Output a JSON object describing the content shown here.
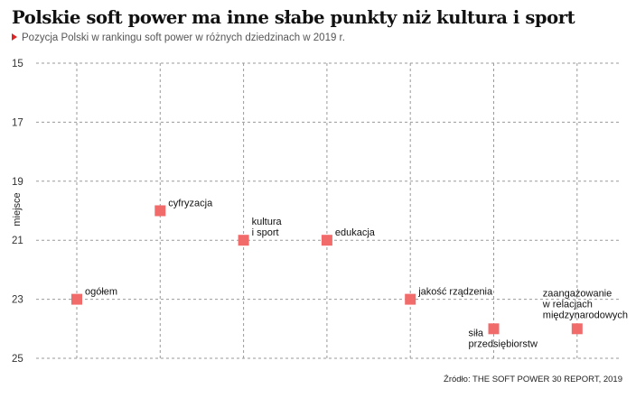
{
  "chart_data": {
    "type": "scatter",
    "title": "Polskie soft power ma inne słabe punkty niż kultura i sport",
    "subtitle": "Pozycja Polski w rankingu soft power w różnych dziedzinach w 2019 r.",
    "ylabel": "miejsce",
    "xlabel": "",
    "ylim": [
      15,
      25
    ],
    "y_inverted": true,
    "y_ticks": [
      "15",
      "17",
      "19",
      "21",
      "23",
      "25"
    ],
    "grid": true,
    "points": [
      {
        "label": [
          "ogółem"
        ],
        "x": 1,
        "y": 23
      },
      {
        "label": [
          "cyfryzacja"
        ],
        "x": 2,
        "y": 20
      },
      {
        "label": [
          "kultura",
          "i sport"
        ],
        "x": 3,
        "y": 21
      },
      {
        "label": [
          "edukacja"
        ],
        "x": 4,
        "y": 21
      },
      {
        "label": [
          "jakość rządzenia"
        ],
        "x": 5,
        "y": 23
      },
      {
        "label": [
          "siła",
          "przedsiębiorstw"
        ],
        "x": 6,
        "y": 24
      },
      {
        "label": [
          "zaangażowanie",
          "w relacjach",
          "międzynarodowych"
        ],
        "x": 7,
        "y": 24
      }
    ],
    "marker_color": "#f26b6b",
    "grid_color": "#9a9a9a"
  },
  "source": "Źródło: THE SOFT POWER 30 REPORT, 2019",
  "accent_color": "#e02424"
}
